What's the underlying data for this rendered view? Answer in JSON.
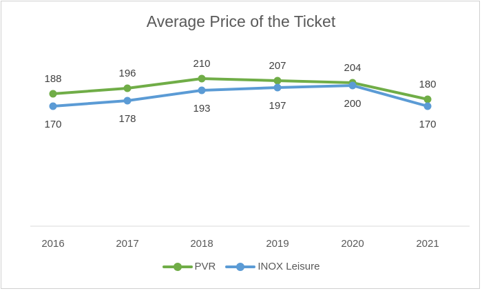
{
  "chart": {
    "title": "Average Price of the Ticket",
    "legend": [
      {
        "name": "PVR",
        "color": "#70ad47"
      },
      {
        "name": "INOX Leisure",
        "color": "#5b9bd5"
      }
    ]
  },
  "chart_data": {
    "type": "line",
    "title": "Average Price of the Ticket",
    "categories": [
      "2016",
      "2017",
      "2018",
      "2019",
      "2020",
      "2021"
    ],
    "series": [
      {
        "name": "PVR",
        "color": "#70ad47",
        "values": [
          188,
          196,
          210,
          207,
          204,
          180
        ]
      },
      {
        "name": "INOX Leisure",
        "color": "#5b9bd5",
        "values": [
          170,
          178,
          193,
          197,
          200,
          170
        ]
      }
    ],
    "xlabel": "",
    "ylabel": "",
    "grid": false,
    "data_labels": true,
    "legend_position": "bottom"
  }
}
